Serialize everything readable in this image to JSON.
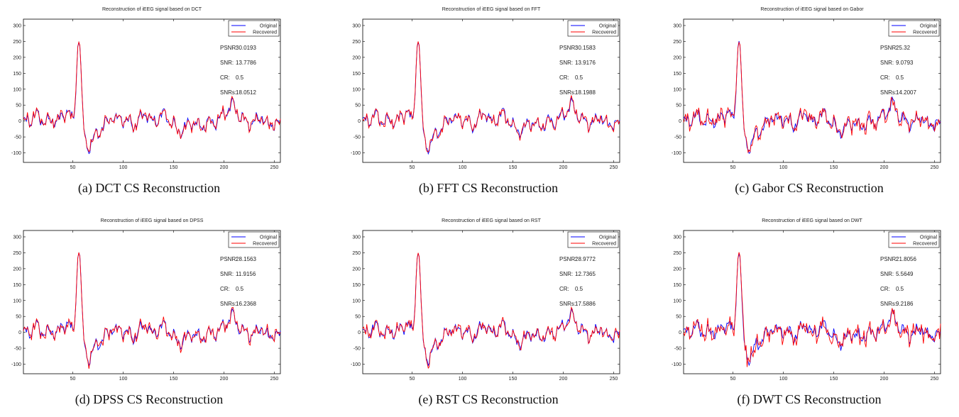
{
  "colors": {
    "original": "#0000ff",
    "recovered": "#ff0000"
  },
  "chart_data": [
    {
      "type": "line",
      "title": "Reconstruction of iEEG signal based on DCT",
      "caption": "(a) DCT CS Reconstruction",
      "xlim": [
        1,
        256
      ],
      "ylim": [
        -130,
        320
      ],
      "xticks": [
        "50",
        "100",
        "150",
        "200",
        "250"
      ],
      "yticks": [
        "-100",
        "-50",
        "0",
        "50",
        "100",
        "150",
        "200",
        "250",
        "300"
      ],
      "legend": [
        "Original",
        "Recovered"
      ],
      "legend_position": "top-right",
      "metrics": [
        {
          "label": "PSNR:",
          "value": "30.0193"
        },
        {
          "label": "SNR:",
          "value": "13.7786"
        },
        {
          "label": "CR:",
          "value": "0.5"
        },
        {
          "label": "SNRs:",
          "value": "18.0512"
        }
      ],
      "noise": 7,
      "seed": 11
    },
    {
      "type": "line",
      "title": "Reconstruction of iEEG signal based on FFT",
      "caption": "(b) FFT CS Reconstruction",
      "xlim": [
        1,
        256
      ],
      "ylim": [
        -130,
        320
      ],
      "xticks": [
        "50",
        "100",
        "150",
        "200",
        "250"
      ],
      "yticks": [
        "-100",
        "-50",
        "0",
        "50",
        "100",
        "150",
        "200",
        "250",
        "300"
      ],
      "legend": [
        "Original",
        "Recovered"
      ],
      "legend_position": "top-right",
      "metrics": [
        {
          "label": "PSNR:",
          "value": "30.1583"
        },
        {
          "label": "SNR:",
          "value": "13.9176"
        },
        {
          "label": "CR:",
          "value": "0.5"
        },
        {
          "label": "SNRs:",
          "value": "18.1988"
        }
      ],
      "noise": 7,
      "seed": 23
    },
    {
      "type": "line",
      "title": "Reconstruction of iEEG signal based on Gabor",
      "caption": "(c) Gabor CS Reconstruction",
      "xlim": [
        1,
        256
      ],
      "ylim": [
        -130,
        320
      ],
      "xticks": [
        "50",
        "100",
        "150",
        "200",
        "250"
      ],
      "yticks": [
        "-100",
        "-50",
        "0",
        "50",
        "100",
        "150",
        "200",
        "250",
        "300"
      ],
      "legend": [
        "Original",
        "Recovered"
      ],
      "legend_position": "top-right",
      "metrics": [
        {
          "label": "PSNR:",
          "value": "25.32"
        },
        {
          "label": "SNR:",
          "value": "9.0793"
        },
        {
          "label": "CR:",
          "value": "0.5"
        },
        {
          "label": "SNRs:",
          "value": "14.2007"
        }
      ],
      "noise": 13,
      "seed": 37
    },
    {
      "type": "line",
      "title": "Reconstruction of iEEG signal based on DPSS",
      "caption": "(d) DPSS CS Reconstruction",
      "xlim": [
        1,
        256
      ],
      "ylim": [
        -130,
        320
      ],
      "xticks": [
        "50",
        "100",
        "150",
        "200",
        "250"
      ],
      "yticks": [
        "-100",
        "-50",
        "0",
        "50",
        "100",
        "150",
        "200",
        "250",
        "300"
      ],
      "legend": [
        "Original",
        "Recovered"
      ],
      "legend_position": "top-right",
      "metrics": [
        {
          "label": "PSNR:",
          "value": "28.1563"
        },
        {
          "label": "SNR:",
          "value": "11.9156"
        },
        {
          "label": "CR:",
          "value": "0.5"
        },
        {
          "label": "SNRs:",
          "value": "16.2368"
        }
      ],
      "noise": 9,
      "seed": 41
    },
    {
      "type": "line",
      "title": "Reconstruction of iEEG signal based on RST",
      "caption": "(e) RST CS Reconstruction",
      "xlim": [
        1,
        256
      ],
      "ylim": [
        -130,
        320
      ],
      "xticks": [
        "50",
        "100",
        "150",
        "200",
        "250"
      ],
      "yticks": [
        "-100",
        "-50",
        "0",
        "50",
        "100",
        "150",
        "200",
        "250",
        "300"
      ],
      "legend": [
        "Original",
        "Recovered"
      ],
      "legend_position": "top-right",
      "metrics": [
        {
          "label": "PSNR:",
          "value": "28.9772"
        },
        {
          "label": "SNR:",
          "value": "12.7365"
        },
        {
          "label": "CR:",
          "value": "0.5"
        },
        {
          "label": "SNRs:",
          "value": "17.5886"
        }
      ],
      "noise": 8,
      "seed": 53
    },
    {
      "type": "line",
      "title": "Reconstruction of iEEG signal based on DWT",
      "caption": "(f) DWT CS Reconstruction",
      "xlim": [
        1,
        256
      ],
      "ylim": [
        -130,
        320
      ],
      "xticks": [
        "50",
        "100",
        "150",
        "200",
        "250"
      ],
      "yticks": [
        "-100",
        "-50",
        "0",
        "50",
        "100",
        "150",
        "200",
        "250",
        "300"
      ],
      "legend": [
        "Original",
        "Recovered"
      ],
      "legend_position": "top-right",
      "metrics": [
        {
          "label": "PSNR:",
          "value": "21.8056"
        },
        {
          "label": "SNR:",
          "value": "5.5649"
        },
        {
          "label": "CR:",
          "value": "0.5"
        },
        {
          "label": "SNRs:",
          "value": "9.2186"
        }
      ],
      "noise": 19,
      "seed": 67
    }
  ]
}
